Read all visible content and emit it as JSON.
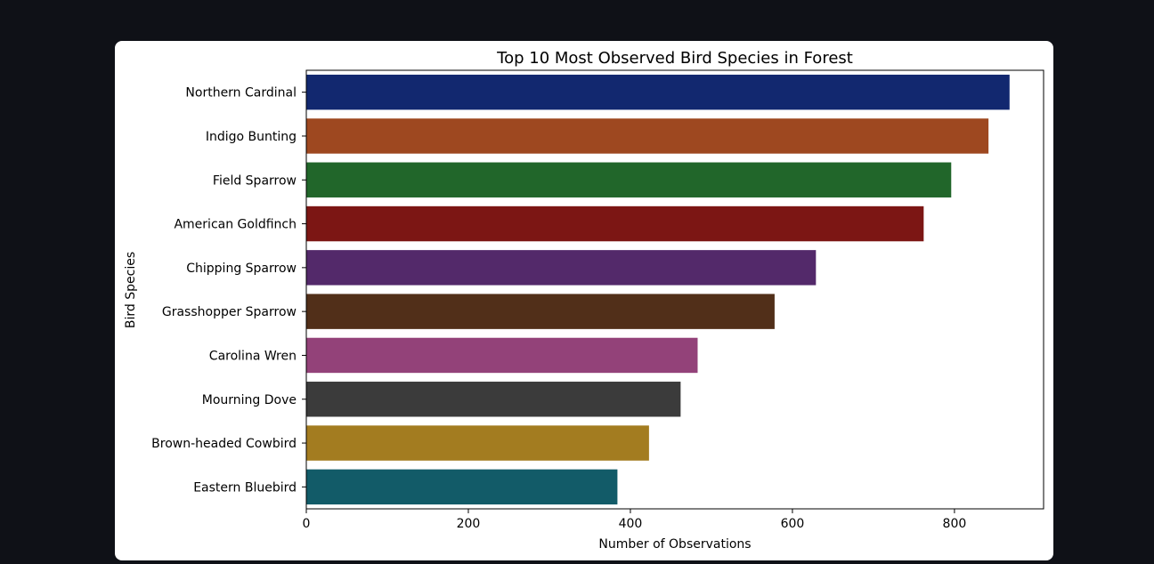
{
  "chart_data": {
    "type": "bar",
    "orientation": "horizontal",
    "title": "Top 10 Most Observed Bird Species in Forest",
    "xlabel": "Number of Observations",
    "ylabel": "Bird Species",
    "xlim": [
      0,
      910
    ],
    "xticks": [
      0,
      200,
      400,
      600,
      800
    ],
    "grid": false,
    "categories": [
      "Northern Cardinal",
      "Indigo Bunting",
      "Field Sparrow",
      "American Goldfinch",
      "Chipping Sparrow",
      "Grasshopper Sparrow",
      "Carolina Wren",
      "Mourning Dove",
      "Brown-headed Cowbird",
      "Eastern Bluebird"
    ],
    "values": [
      868,
      842,
      796,
      762,
      629,
      578,
      483,
      462,
      423,
      384
    ],
    "colors": [
      "#12286f",
      "#9e4820",
      "#21662a",
      "#7c1614",
      "#53296a",
      "#512f19",
      "#934279",
      "#3b3b3b",
      "#a37c20",
      "#125b68"
    ]
  }
}
